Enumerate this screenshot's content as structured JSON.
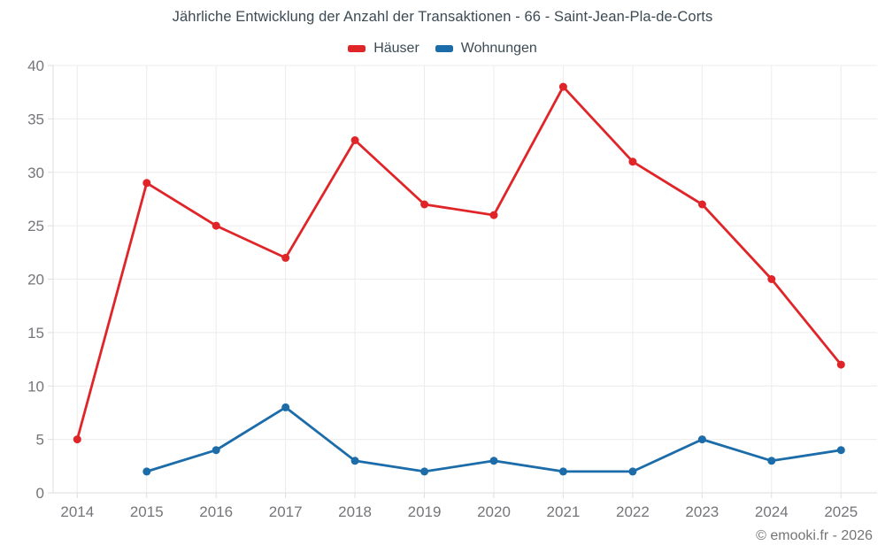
{
  "page": {
    "title": "Jährliche Entwicklung der Anzahl der Transaktionen - 66 - Saint-Jean-Pla-de-Corts",
    "attribution": "© emooki.fr - 2026"
  },
  "colors": {
    "background": "#ffffff",
    "title_text": "#3c4a54",
    "axis_text": "#75757a",
    "grid_line": "#ececec",
    "axis_line": "#dedede",
    "hauser_red": "#e02529",
    "wohnungen_blue": "#1b6ca8"
  },
  "chart_data": {
    "type": "line",
    "title": "Jährliche Entwicklung der Anzahl der Transaktionen - 66 - Saint-Jean-Pla-de-Corts",
    "x": [
      "2014",
      "2015",
      "2016",
      "2017",
      "2018",
      "2019",
      "2020",
      "2021",
      "2022",
      "2023",
      "2024",
      "2025"
    ],
    "series": [
      {
        "name": "Häuser",
        "color": "#e02529",
        "values": [
          5,
          29,
          25,
          22,
          33,
          27,
          26,
          38,
          31,
          27,
          20,
          12
        ]
      },
      {
        "name": "Wohnungen",
        "color": "#1b6ca8",
        "values": [
          null,
          2,
          4,
          8,
          3,
          2,
          3,
          2,
          2,
          5,
          3,
          4
        ]
      }
    ],
    "xlabel": "",
    "ylabel": "",
    "ylim": [
      0,
      40
    ],
    "yticks": [
      0,
      5,
      10,
      15,
      20,
      25,
      30,
      35,
      40
    ],
    "grid": true,
    "legend_position": "top",
    "marker": "circle"
  }
}
